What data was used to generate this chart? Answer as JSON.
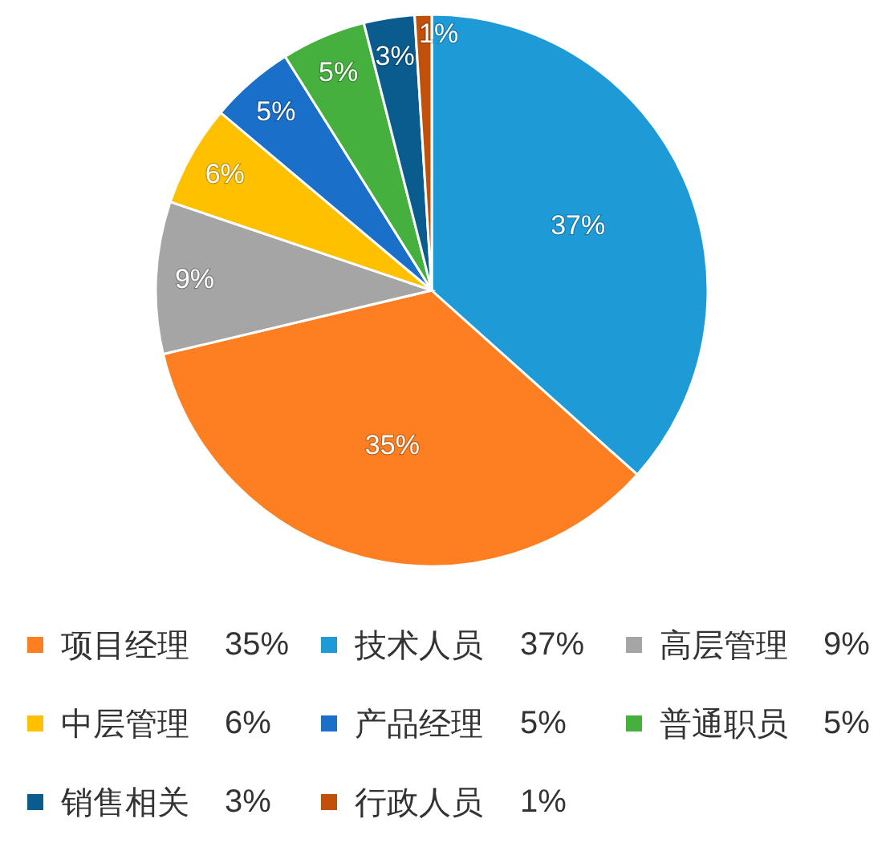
{
  "chart_data": {
    "type": "pie",
    "categories": [
      "项目经理",
      "技术人员",
      "高层管理",
      "中层管理",
      "产品经理",
      "普通职员",
      "销售相关",
      "行政人员"
    ],
    "values": [
      35,
      37,
      9,
      6,
      5,
      5,
      3,
      1
    ],
    "value_labels": [
      "35%",
      "37%",
      "9%",
      "6%",
      "5%",
      "5%",
      "3%",
      "1%"
    ],
    "colors": [
      "#fd7f22",
      "#1e9bd7",
      "#a5a5a5",
      "#ffc000",
      "#1a6fc8",
      "#46b03e",
      "#0a5c8f",
      "#c0500a"
    ],
    "legend": "bottom"
  }
}
